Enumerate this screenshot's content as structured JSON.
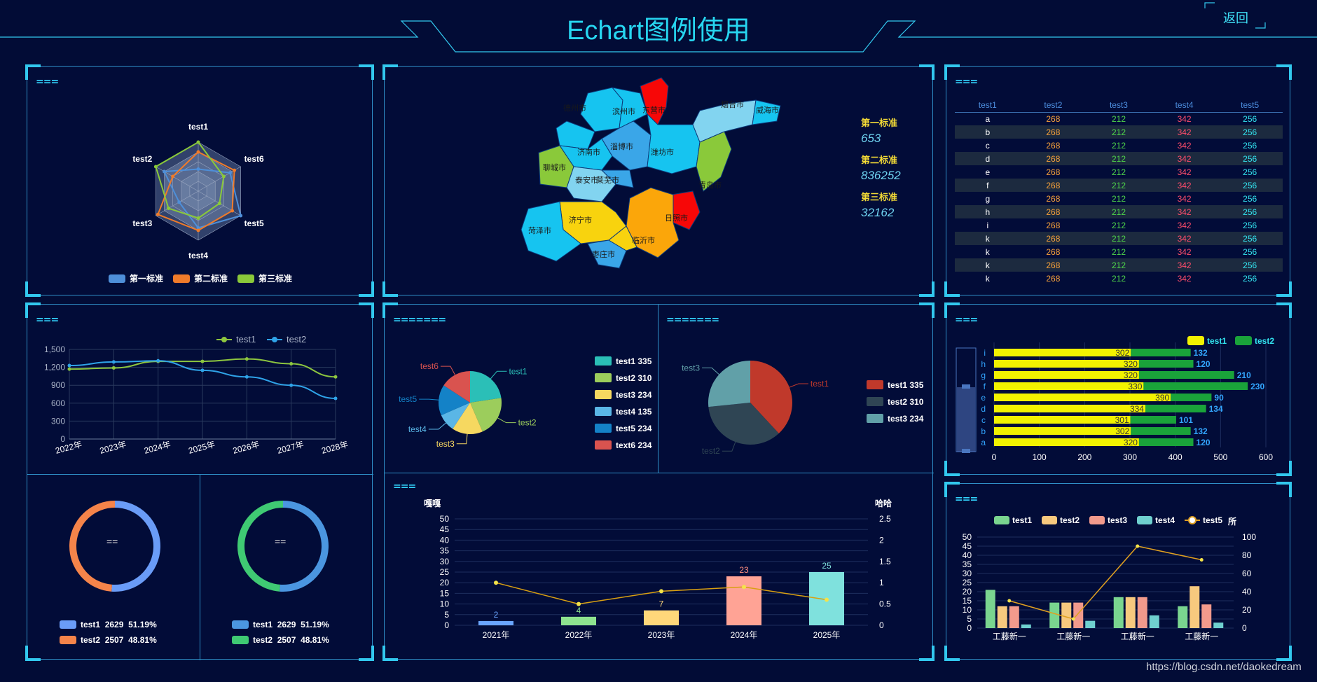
{
  "header": {
    "title": "Echart图例使用",
    "back_label": "返回"
  },
  "colors": {
    "bg": "#020c36",
    "frame": "#32c8ee",
    "accent": "#33d6ff"
  },
  "radar_panel": {
    "title": "===",
    "indicators": [
      "test1",
      "test6",
      "test5",
      "test4",
      "test3",
      "test2"
    ],
    "series": [
      {
        "name": "第一标准",
        "color": "#4e8fd9"
      },
      {
        "name": "第二标准",
        "color": "#f07b2a"
      },
      {
        "name": "第三标准",
        "color": "#8ac93a"
      }
    ]
  },
  "map_panel": {
    "cities": [
      "德州市",
      "滨州市",
      "东营市",
      "烟台市",
      "威海市",
      "济南市",
      "淄博市",
      "潍坊市",
      "聊城市",
      "泰安市",
      "莱芜市",
      "青岛市",
      "济宁市",
      "日照市",
      "菏泽市",
      "临沂市",
      "枣庄市"
    ],
    "stats": [
      {
        "label": "第一标准",
        "value": "653"
      },
      {
        "label": "第二标准",
        "value": "836252"
      },
      {
        "label": "第三标准",
        "value": "32162"
      }
    ]
  },
  "table_panel": {
    "title": "===",
    "columns": [
      "test1",
      "test2",
      "test3",
      "test4",
      "test5"
    ],
    "column_colors": [
      "#ffffff",
      "#f7a23a",
      "#4fd64a",
      "#ff4d6b",
      "#33e5f0"
    ],
    "rows": [
      [
        "a",
        "268",
        "212",
        "342",
        "256"
      ],
      [
        "b",
        "268",
        "212",
        "342",
        "256"
      ],
      [
        "c",
        "268",
        "212",
        "342",
        "256"
      ],
      [
        "d",
        "268",
        "212",
        "342",
        "256"
      ],
      [
        "e",
        "268",
        "212",
        "342",
        "256"
      ],
      [
        "f",
        "268",
        "212",
        "342",
        "256"
      ],
      [
        "g",
        "268",
        "212",
        "342",
        "256"
      ],
      [
        "h",
        "268",
        "212",
        "342",
        "256"
      ],
      [
        "i",
        "268",
        "212",
        "342",
        "256"
      ],
      [
        "k",
        "268",
        "212",
        "342",
        "256"
      ],
      [
        "k",
        "268",
        "212",
        "342",
        "256"
      ],
      [
        "k",
        "268",
        "212",
        "342",
        "256"
      ],
      [
        "k",
        "268",
        "212",
        "342",
        "256"
      ]
    ]
  },
  "line_panel": {
    "title": "==="
  },
  "donut_panel": {
    "left": {
      "center_label": "==",
      "items": [
        {
          "name": "test1",
          "value": "2629",
          "pct": "51.19%",
          "color": "#6a9cf7"
        },
        {
          "name": "test2",
          "value": "2507",
          "pct": "48.81%",
          "color": "#f5844a"
        }
      ]
    },
    "right": {
      "center_label": "==",
      "items": [
        {
          "name": "test1",
          "value": "2629",
          "pct": "51.19%",
          "color": "#4b96e0"
        },
        {
          "name": "test2",
          "value": "2507",
          "pct": "48.81%",
          "color": "#3fca73"
        }
      ]
    }
  },
  "pie_panel_left": {
    "title": "======="
  },
  "pie_panel_right": {
    "title": "======="
  },
  "combo_panel": {
    "title": "==="
  },
  "hbar_panel": {
    "title": "==="
  },
  "groupbar_panel": {
    "title": "==="
  },
  "footer": {
    "watermark": "https://blog.csdn.net/daokedream"
  },
  "chart_data": [
    {
      "type": "radar",
      "id": "radar",
      "indicators": [
        "test1",
        "test6",
        "test5",
        "test4",
        "test3",
        "test2"
      ],
      "series": [
        {
          "name": "第一标准",
          "color": "#4e8fd9",
          "values": [
            0.45,
            0.75,
            1.0,
            0.75,
            0.45,
            0.8
          ]
        },
        {
          "name": "第二标准",
          "color": "#f07b2a",
          "values": [
            0.8,
            0.85,
            0.8,
            0.8,
            0.95,
            0.6
          ]
        },
        {
          "name": "第三标准",
          "color": "#8ac93a",
          "values": [
            1.0,
            0.6,
            0.5,
            0.55,
            0.7,
            1.0
          ]
        }
      ]
    },
    {
      "type": "line",
      "id": "line",
      "categories": [
        "2022年",
        "2023年",
        "2024年",
        "2025年",
        "2026年",
        "2027年",
        "2028年"
      ],
      "ylim": [
        0,
        1500
      ],
      "yticks": [
        "0",
        "300",
        "600",
        "900",
        "1,200",
        "1,500"
      ],
      "series": [
        {
          "name": "test1",
          "color": "#8dc63f",
          "values": [
            1170,
            1190,
            1300,
            1300,
            1340,
            1260,
            1040
          ]
        },
        {
          "name": "test2",
          "color": "#2fa3e8",
          "values": [
            1230,
            1290,
            1310,
            1150,
            1040,
            900,
            680
          ]
        }
      ]
    },
    {
      "type": "pie",
      "id": "pie-left",
      "slices": [
        {
          "name": "test1",
          "value": 335,
          "color": "#2bbfb7"
        },
        {
          "name": "test2",
          "value": 310,
          "color": "#9ccd5c"
        },
        {
          "name": "test3",
          "value": 234,
          "color": "#f6d860"
        },
        {
          "name": "test4",
          "value": 135,
          "color": "#5ab6e6"
        },
        {
          "name": "test5",
          "value": 234,
          "color": "#1482c7"
        },
        {
          "name": "test6",
          "value": 234,
          "color": "#d9534f"
        }
      ],
      "legend": [
        "test1 335",
        "test2 310",
        "test3 234",
        "test4 135",
        "test5 234",
        "text6 234"
      ]
    },
    {
      "type": "pie",
      "id": "pie-right",
      "slices": [
        {
          "name": "test1",
          "value": 335,
          "color": "#c0392b"
        },
        {
          "name": "test2",
          "value": 310,
          "color": "#2f4554"
        },
        {
          "name": "test3",
          "value": 234,
          "color": "#61a0a8"
        }
      ],
      "legend": [
        "test1 335",
        "test2 310",
        "test3 234"
      ]
    },
    {
      "type": "bar",
      "id": "combo",
      "categories": [
        "2021年",
        "2022年",
        "2023年",
        "2024年",
        "2025年"
      ],
      "ylabel": "嘎嘎",
      "y2label": "哈哈",
      "ylim": [
        0,
        50
      ],
      "y2lim": [
        0,
        2.5
      ],
      "yticks": [
        "0",
        "5",
        "10",
        "15",
        "20",
        "25",
        "30",
        "35",
        "40",
        "45",
        "50"
      ],
      "y2ticks": [
        "0",
        "0.5",
        "1",
        "1.5",
        "2",
        "2.5"
      ],
      "bars": [
        2,
        4,
        7,
        23,
        25
      ],
      "bar_colors": [
        "#6aa5ff",
        "#8ee38f",
        "#ffd77a",
        "#ffa395",
        "#7fe1dd"
      ],
      "bar_label_colors": [
        "#6aa5ff",
        "#8ee38f",
        "#ffd77a",
        "#ff8f7f",
        "#7fe1dd"
      ],
      "line": [
        1.0,
        0.5,
        0.8,
        0.9,
        0.6
      ],
      "line_color": "#d9a012"
    },
    {
      "type": "bar",
      "id": "hbar",
      "categories": [
        "a",
        "b",
        "c",
        "d",
        "e",
        "f",
        "g",
        "h",
        "i"
      ],
      "xlim": [
        0,
        600
      ],
      "xticks": [
        "0",
        "100",
        "200",
        "300",
        "400",
        "500",
        "600"
      ],
      "series": [
        {
          "name": "test1",
          "color": "#f2f200",
          "values": [
            320,
            302,
            301,
            334,
            390,
            330,
            320,
            320,
            302
          ]
        },
        {
          "name": "test2",
          "color": "#1aa33a",
          "values": [
            120,
            132,
            101,
            134,
            90,
            230,
            210,
            120,
            132
          ]
        }
      ]
    },
    {
      "type": "bar",
      "id": "groupbar",
      "categories": [
        "工藤新一",
        "工藤新一",
        "工藤新一",
        "工藤新一"
      ],
      "ylim": [
        0,
        50
      ],
      "y2lim": [
        0,
        100
      ],
      "y2label": "所",
      "yticks": [
        "0",
        "5",
        "10",
        "15",
        "20",
        "25",
        "30",
        "35",
        "40",
        "45",
        "50"
      ],
      "y2ticks": [
        "0",
        "20",
        "40",
        "60",
        "80",
        "100"
      ],
      "series": [
        {
          "name": "test1",
          "color": "#7ad58f",
          "values": [
            21,
            14,
            17,
            12
          ]
        },
        {
          "name": "test2",
          "color": "#f7c97e",
          "values": [
            12,
            14,
            17,
            23
          ]
        },
        {
          "name": "test3",
          "color": "#f29a8c",
          "values": [
            12,
            14,
            17,
            13
          ]
        },
        {
          "name": "test4",
          "color": "#6fd0cf",
          "values": [
            2,
            4,
            7,
            3
          ]
        }
      ],
      "line": {
        "name": "test5",
        "color": "#e0a020",
        "values": [
          30,
          10,
          90,
          75
        ]
      }
    }
  ]
}
